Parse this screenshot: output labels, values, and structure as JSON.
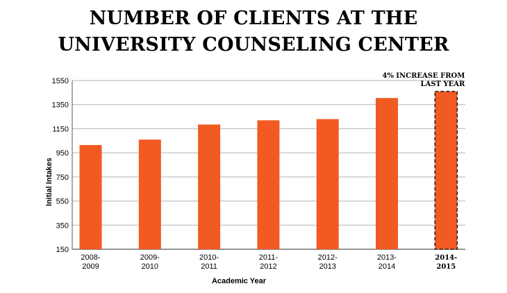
{
  "title_line1": "NUMBER OF CLIENTS AT THE",
  "title_line2": "UNIVERSITY COUNSELING CENTER",
  "chart_data": {
    "type": "bar",
    "title": "NUMBER OF CLIENTS AT THE UNIVERSITY COUNSELING CENTER",
    "xlabel": "Academic Year",
    "ylabel": "Initial Intakes",
    "ylim": [
      150,
      1550
    ],
    "yticks": [
      150,
      350,
      550,
      750,
      950,
      1150,
      1350,
      1550
    ],
    "categories": [
      [
        "2008-",
        "2009"
      ],
      [
        "2009-",
        "2010"
      ],
      [
        "2010-",
        "2011"
      ],
      [
        "2011-",
        "2012"
      ],
      [
        "2012-",
        "2013"
      ],
      [
        "2013-",
        "2014"
      ],
      [
        "2014-",
        "2015"
      ]
    ],
    "values": [
      1015,
      1060,
      1185,
      1220,
      1230,
      1405,
      1460
    ],
    "highlighted_index": 6,
    "annotation": [
      "4% INCREASE FROM",
      "LAST YEAR"
    ],
    "grid": true,
    "colors": {
      "bar": "#f15a22",
      "grid": "#b3b3b3",
      "axis": "#555555",
      "highlight_border": "#222222"
    }
  }
}
